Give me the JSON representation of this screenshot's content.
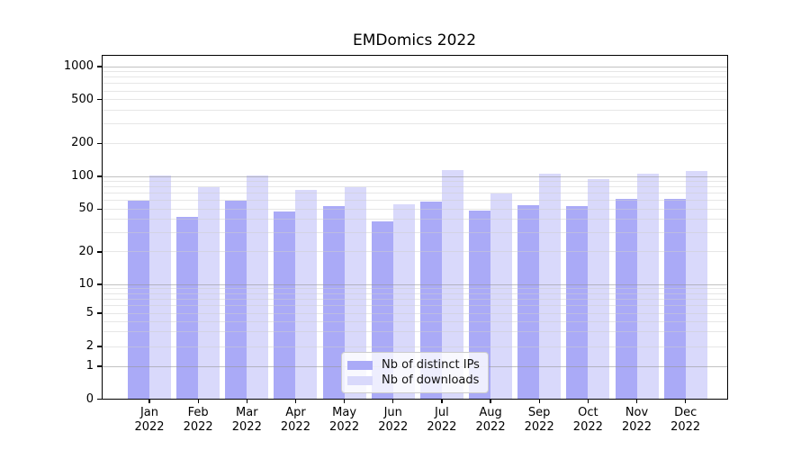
{
  "chart_data": {
    "type": "bar",
    "title": "EMDomics 2022",
    "categories": [
      "Jan 2022",
      "Feb 2022",
      "Mar 2022",
      "Apr 2022",
      "May 2022",
      "Jun 2022",
      "Jul 2022",
      "Aug 2022",
      "Sep 2022",
      "Oct 2022",
      "Nov 2022",
      "Dec 2022"
    ],
    "x_tick_months": [
      "Jan",
      "Feb",
      "Mar",
      "Apr",
      "May",
      "Jun",
      "Jul",
      "Aug",
      "Sep",
      "Oct",
      "Nov",
      "Dec"
    ],
    "x_tick_year": "2022",
    "series": [
      {
        "name": "Nb of distinct IPs",
        "color": "#aaaaf7",
        "values": [
          60,
          42,
          60,
          47,
          53,
          38,
          58,
          48,
          54,
          53,
          62,
          62
        ]
      },
      {
        "name": "Nb of downloads",
        "color": "#d9d9fb",
        "values": [
          101,
          80,
          102,
          75,
          79,
          55,
          114,
          70,
          106,
          94,
          105,
          112
        ]
      }
    ],
    "y_axis": {
      "scale": "symlog",
      "ticks": [
        0,
        1,
        2,
        5,
        10,
        20,
        50,
        100,
        200,
        500,
        1000
      ],
      "major_grid_values": [
        1,
        10,
        100,
        1000
      ],
      "ylim": [
        0,
        1400
      ]
    },
    "grid": "both",
    "legend": {
      "position": "lower center"
    },
    "colors": {
      "background": "#ffffff",
      "major_grid": "#cacaca",
      "minor_grid": "#e6e6e6",
      "spine": "#000000"
    }
  }
}
